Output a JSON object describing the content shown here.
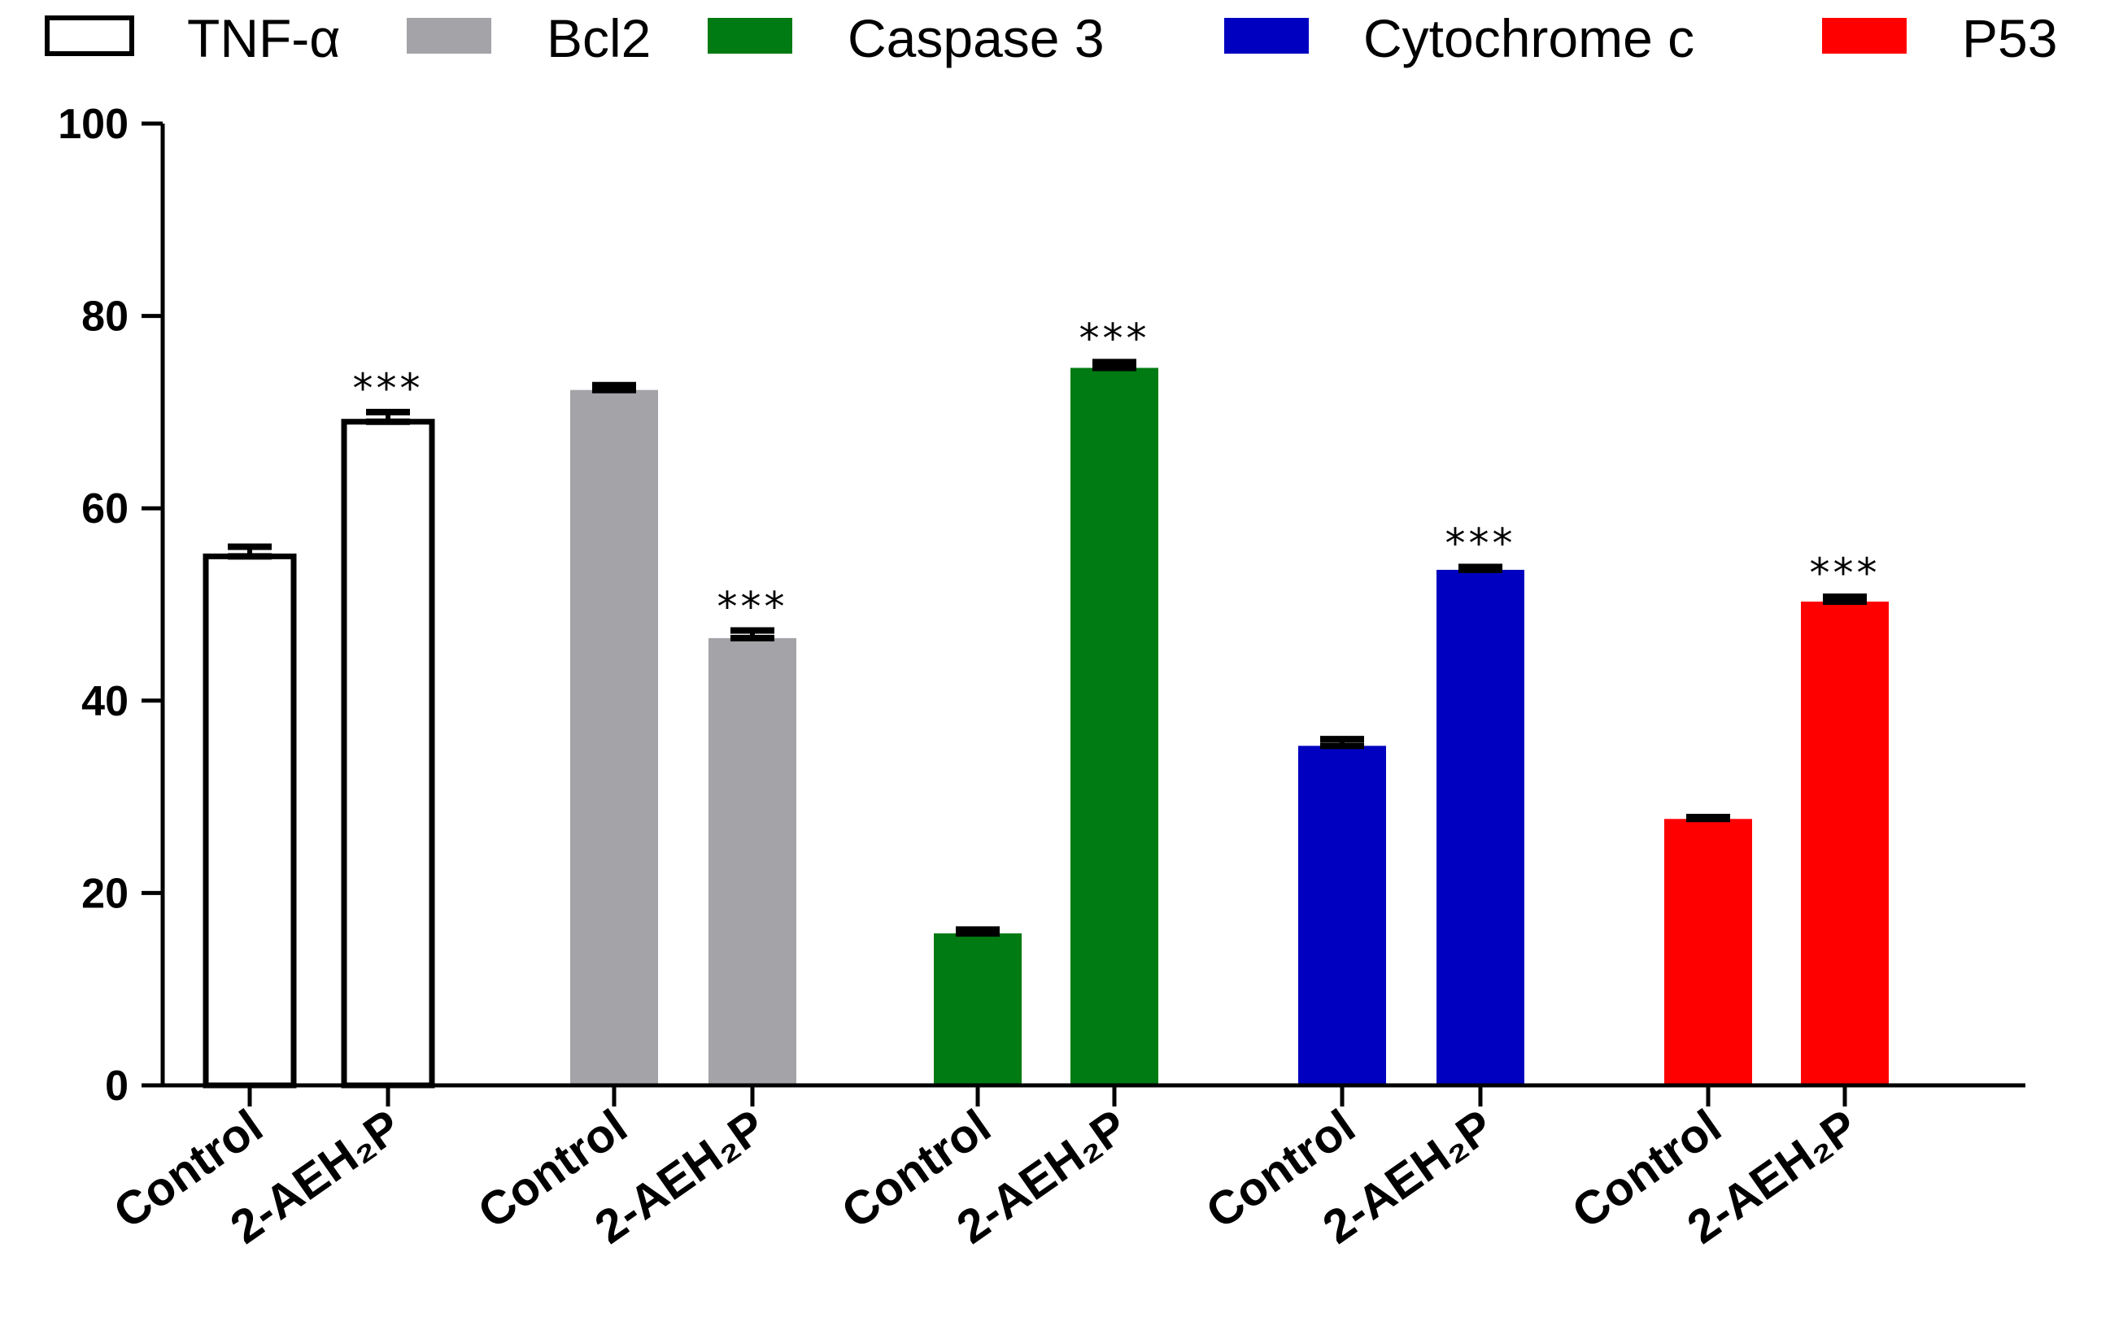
{
  "chart_data": {
    "type": "bar",
    "title": "",
    "xlabel": "",
    "ylabel": "",
    "ylim": [
      0,
      100
    ],
    "yticks": [
      "0",
      "20",
      "40",
      "60",
      "80",
      "100"
    ],
    "legend_position": "top",
    "significance_marker": "***",
    "groups": [
      {
        "name": "TNF-α",
        "color": "#ffffff",
        "outline": true,
        "bars": [
          {
            "label": "Control",
            "value": 55.0,
            "error": 1.0,
            "significance": ""
          },
          {
            "label": "2-AEH₂P",
            "value": 69.0,
            "error": 1.0,
            "significance": "***"
          }
        ]
      },
      {
        "name": "Bcl2",
        "color": "#a3a3a8",
        "outline": false,
        "bars": [
          {
            "label": "Control",
            "value": 72.3,
            "error": 0.5,
            "significance": ""
          },
          {
            "label": "2-AEH₂P",
            "value": 46.5,
            "error": 0.8,
            "significance": "***"
          }
        ]
      },
      {
        "name": "Caspase 3",
        "color": "#007a12",
        "outline": false,
        "bars": [
          {
            "label": "Control",
            "value": 15.8,
            "error": 0.4,
            "significance": ""
          },
          {
            "label": "2-AEH₂P",
            "value": 74.6,
            "error": 0.6,
            "significance": "***"
          }
        ]
      },
      {
        "name": "Cytochrome c",
        "color": "#0000c0",
        "outline": false,
        "bars": [
          {
            "label": "Control",
            "value": 35.3,
            "error": 0.7,
            "significance": ""
          },
          {
            "label": "2-AEH₂P",
            "value": 53.6,
            "error": 0.3,
            "significance": "***"
          }
        ]
      },
      {
        "name": "P53",
        "color": "#ff0000",
        "outline": false,
        "bars": [
          {
            "label": "Control",
            "value": 27.7,
            "error": 0.2,
            "significance": ""
          },
          {
            "label": "2-AEH₂P",
            "value": 50.3,
            "error": 0.5,
            "significance": "***"
          }
        ]
      }
    ]
  }
}
